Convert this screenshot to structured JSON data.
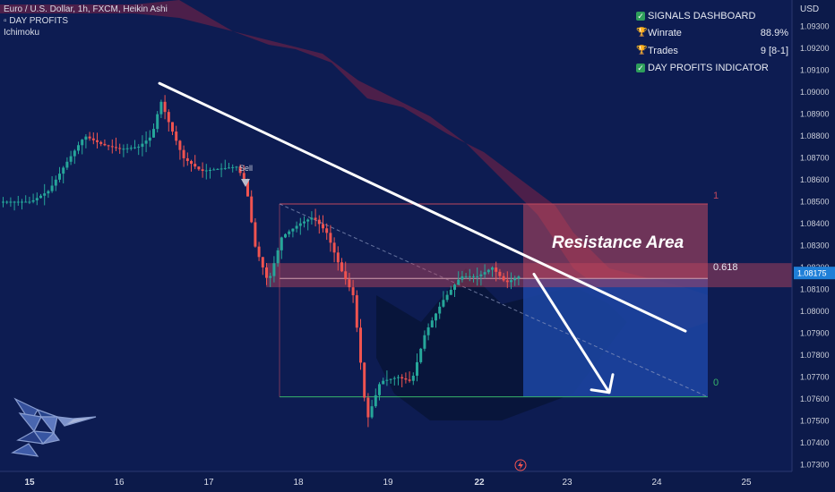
{
  "header": {
    "symbol_line": "Euro / U.S. Dollar, 1h, FXCM, Heikin Ashi",
    "indicator_1": "DAY PROFITS",
    "indicator_2": "Ichimoku"
  },
  "dashboard": {
    "title": "SIGNALS DASHBOARD",
    "winrate_label": "Winrate",
    "winrate_value": "88.9%",
    "trades_label": "Trades",
    "trades_value": "9 [8-1]",
    "footer": "DAY PROFITS INDICATOR"
  },
  "annotations": {
    "resistance": "Resistance Area",
    "sell": "Sell",
    "fib_1": "1",
    "fib_618": "0.618",
    "fib_0": "0"
  },
  "colors": {
    "background": "#0c1a4a",
    "bull": "#26a69a",
    "bear": "#ef5350",
    "cloud": "#5c2048",
    "resistance": "#c0485e",
    "target": "#1c44a0"
  },
  "chart_data": {
    "type": "candlestick",
    "style": "Heikin Ashi",
    "currency": "USD",
    "current_price": "1.08175",
    "y_ticks": [
      "1.09300",
      "1.09200",
      "1.09100",
      "1.09000",
      "1.08900",
      "1.08800",
      "1.08700",
      "1.08600",
      "1.08500",
      "1.08400",
      "1.08300",
      "1.08200",
      "1.08100",
      "1.08000",
      "1.07900",
      "1.07800",
      "1.07700",
      "1.07600",
      "1.07500",
      "1.07400",
      "1.07300"
    ],
    "x_ticks": [
      "15",
      "16",
      "17",
      "18",
      "19",
      "22",
      "23",
      "24",
      "25"
    ],
    "ylim": [
      1.0727,
      1.0942
    ],
    "fib_levels": [
      {
        "label": "1",
        "price": 1.0849
      },
      {
        "label": "0.618",
        "price": 1.0815
      },
      {
        "label": "0",
        "price": 1.0761
      }
    ],
    "resistance_zone": [
      1.0811,
      1.0822
    ],
    "trendline": [
      [
        16.45,
        1.0904
      ],
      [
        24.3,
        1.0791
      ]
    ],
    "projection_arrow": [
      [
        22.6,
        1.0817
      ],
      [
        23.5,
        1.0763
      ]
    ],
    "sell_signal": {
      "label": "Sell",
      "x": 17.4,
      "price": 1.0862
    },
    "price_path": [
      [
        15.0,
        1.085
      ],
      [
        15.2,
        1.0855
      ],
      [
        15.4,
        1.0868
      ],
      [
        15.6,
        1.088
      ],
      [
        15.8,
        1.0876
      ],
      [
        16.0,
        1.0874
      ],
      [
        16.2,
        1.0875
      ],
      [
        16.35,
        1.088
      ],
      [
        16.45,
        1.0896
      ],
      [
        16.55,
        1.0885
      ],
      [
        16.7,
        1.087
      ],
      [
        16.9,
        1.0864
      ],
      [
        17.1,
        1.0865
      ],
      [
        17.3,
        1.0866
      ],
      [
        17.4,
        1.0858
      ],
      [
        17.5,
        1.083
      ],
      [
        17.65,
        1.0813
      ],
      [
        17.8,
        1.0834
      ],
      [
        18.0,
        1.084
      ],
      [
        18.15,
        1.0843
      ],
      [
        18.3,
        1.0836
      ],
      [
        18.45,
        1.082
      ],
      [
        18.6,
        1.0807
      ],
      [
        18.75,
        1.075
      ],
      [
        18.9,
        1.0768
      ],
      [
        19.1,
        1.077
      ],
      [
        19.25,
        1.0768
      ],
      [
        19.4,
        1.079
      ],
      [
        19.6,
        1.0805
      ],
      [
        19.8,
        1.0816
      ],
      [
        20.0,
        1.0816
      ],
      [
        21.95,
        1.0815
      ],
      [
        22.15,
        1.082
      ],
      [
        22.3,
        1.0813
      ],
      [
        22.45,
        1.0816
      ]
    ]
  }
}
